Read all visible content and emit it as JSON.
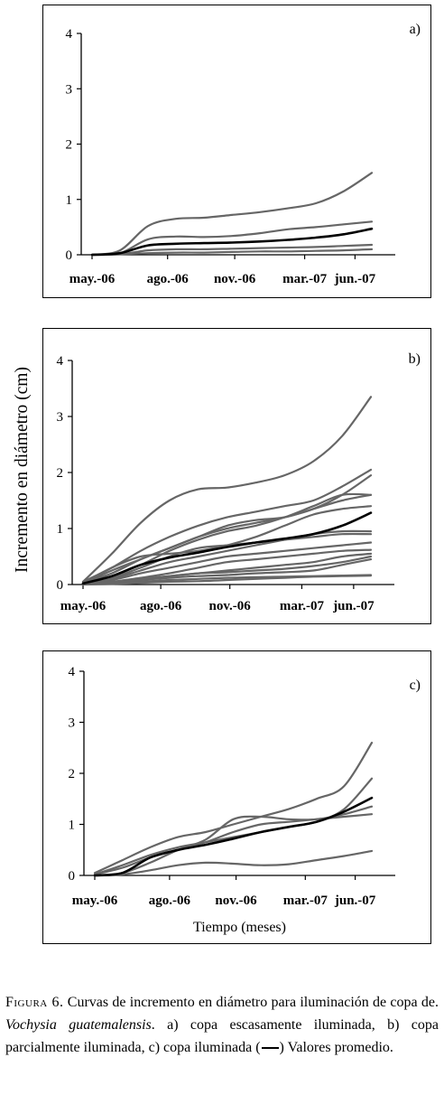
{
  "ylabel": "Incremento en diámetro (cm)",
  "caption": {
    "fig_label": "Figura 6.",
    "text_1": " Curvas de incremento en diámetro para iluminación de copa de. ",
    "species": "Vochysia guatemalensis",
    "text_2": ". a) copa escasamente iluminada, b) copa parcialmente iluminada, c) copa iluminada (",
    "text_3": ") Valores promedio."
  },
  "colors": {
    "tree": "#666666",
    "mean": "#000000"
  },
  "chart_data": [
    {
      "type": "line",
      "panel_label": "a)",
      "xlabel": "",
      "ylabel": "Incremento en diámetro (cm)",
      "yticks": [
        "0",
        "1",
        "2",
        "3",
        "4"
      ],
      "xticks": [
        "may.-06",
        "ago.-06",
        "nov.-06",
        "mar.-07",
        "jun.-07"
      ],
      "ylim": [
        0,
        4
      ],
      "xlim": [
        0,
        1
      ],
      "x": [
        0.0,
        0.1,
        0.2,
        0.3,
        0.4,
        0.5,
        0.6,
        0.7,
        0.8,
        0.9,
        1.0
      ],
      "series": [
        {
          "role": "tree",
          "values": [
            0.0,
            0.08,
            0.52,
            0.65,
            0.67,
            0.72,
            0.77,
            0.84,
            0.93,
            1.15,
            1.48
          ]
        },
        {
          "role": "tree",
          "values": [
            0.0,
            0.03,
            0.28,
            0.33,
            0.32,
            0.34,
            0.39,
            0.46,
            0.5,
            0.55,
            0.6
          ]
        },
        {
          "role": "tree",
          "values": [
            0.0,
            0.01,
            0.08,
            0.1,
            0.1,
            0.11,
            0.12,
            0.13,
            0.14,
            0.16,
            0.18
          ]
        },
        {
          "role": "tree",
          "values": [
            0.0,
            0.01,
            0.03,
            0.04,
            0.04,
            0.05,
            0.06,
            0.06,
            0.07,
            0.08,
            0.1
          ]
        },
        {
          "role": "mean",
          "values": [
            0.0,
            0.03,
            0.17,
            0.2,
            0.21,
            0.22,
            0.24,
            0.27,
            0.31,
            0.37,
            0.47
          ]
        }
      ]
    },
    {
      "type": "line",
      "panel_label": "b)",
      "xlabel": "",
      "ylabel": "Incremento en diámetro (cm)",
      "yticks": [
        "0",
        "1",
        "2",
        "3",
        "4"
      ],
      "xticks": [
        "may.-06",
        "ago.-06",
        "nov.-06",
        "mar.-07",
        "jun.-07"
      ],
      "ylim": [
        0,
        4
      ],
      "xlim": [
        0,
        1
      ],
      "x": [
        0.0,
        0.1,
        0.2,
        0.3,
        0.4,
        0.5,
        0.6,
        0.7,
        0.8,
        0.9,
        1.0
      ],
      "series": [
        {
          "role": "tree",
          "values": [
            0.05,
            0.55,
            1.1,
            1.5,
            1.7,
            1.73,
            1.82,
            1.95,
            2.2,
            2.65,
            3.35
          ]
        },
        {
          "role": "tree",
          "values": [
            0.05,
            0.3,
            0.6,
            0.85,
            1.05,
            1.2,
            1.3,
            1.4,
            1.5,
            1.75,
            2.05
          ]
        },
        {
          "role": "tree",
          "values": [
            0.03,
            0.2,
            0.45,
            0.65,
            0.85,
            1.0,
            1.1,
            1.2,
            1.35,
            1.6,
            1.95
          ]
        },
        {
          "role": "tree",
          "values": [
            0.02,
            0.25,
            0.45,
            0.65,
            0.85,
            1.05,
            1.15,
            1.2,
            1.35,
            1.5,
            1.6
          ]
        },
        {
          "role": "tree",
          "values": [
            0.02,
            0.15,
            0.35,
            0.6,
            0.8,
            0.95,
            1.05,
            1.2,
            1.4,
            1.6,
            1.6
          ]
        },
        {
          "role": "tree",
          "values": [
            0.02,
            0.3,
            0.5,
            0.55,
            0.6,
            0.7,
            0.85,
            1.05,
            1.25,
            1.35,
            1.4
          ]
        },
        {
          "role": "tree",
          "values": [
            0.02,
            0.1,
            0.25,
            0.4,
            0.5,
            0.6,
            0.7,
            0.8,
            0.9,
            0.95,
            0.95
          ]
        },
        {
          "role": "tree",
          "values": [
            0.02,
            0.12,
            0.3,
            0.5,
            0.65,
            0.7,
            0.75,
            0.8,
            0.85,
            0.9,
            0.9
          ]
        },
        {
          "role": "tree",
          "values": [
            0.02,
            0.08,
            0.2,
            0.3,
            0.4,
            0.5,
            0.55,
            0.6,
            0.65,
            0.7,
            0.75
          ]
        },
        {
          "role": "tree",
          "values": [
            0.01,
            0.05,
            0.12,
            0.2,
            0.3,
            0.4,
            0.45,
            0.5,
            0.55,
            0.6,
            0.62
          ]
        },
        {
          "role": "tree",
          "values": [
            0.01,
            0.04,
            0.1,
            0.15,
            0.2,
            0.25,
            0.3,
            0.35,
            0.4,
            0.5,
            0.55
          ]
        },
        {
          "role": "tree",
          "values": [
            0.01,
            0.05,
            0.1,
            0.15,
            0.2,
            0.22,
            0.25,
            0.28,
            0.33,
            0.4,
            0.5
          ]
        },
        {
          "role": "tree",
          "values": [
            0.01,
            0.03,
            0.08,
            0.12,
            0.15,
            0.17,
            0.2,
            0.22,
            0.25,
            0.35,
            0.45
          ]
        },
        {
          "role": "tree",
          "values": [
            0.01,
            0.02,
            0.05,
            0.08,
            0.1,
            0.12,
            0.13,
            0.14,
            0.15,
            0.16,
            0.17
          ]
        },
        {
          "role": "tree",
          "values": [
            0.0,
            0.01,
            0.03,
            0.05,
            0.06,
            0.08,
            0.1,
            0.12,
            0.14,
            0.15,
            0.16
          ]
        },
        {
          "role": "mean",
          "values": [
            0.02,
            0.15,
            0.35,
            0.48,
            0.57,
            0.67,
            0.75,
            0.82,
            0.9,
            1.05,
            1.28
          ]
        }
      ]
    },
    {
      "type": "line",
      "panel_label": "c)",
      "xlabel": "Tiempo (meses)",
      "ylabel": "Incremento en diámetro (cm)",
      "yticks": [
        "0",
        "1",
        "2",
        "3",
        "4"
      ],
      "xticks": [
        "may.-06",
        "ago.-06",
        "nov.-06",
        "mar.-07",
        "jun.-07"
      ],
      "ylim": [
        0,
        4
      ],
      "xlim": [
        0,
        1
      ],
      "x": [
        0.0,
        0.1,
        0.2,
        0.3,
        0.4,
        0.5,
        0.6,
        0.7,
        0.8,
        0.9,
        1.0
      ],
      "series": [
        {
          "role": "tree",
          "values": [
            0.05,
            0.3,
            0.55,
            0.75,
            0.85,
            1.0,
            1.15,
            1.3,
            1.5,
            1.75,
            2.6
          ]
        },
        {
          "role": "tree",
          "values": [
            0.02,
            0.2,
            0.4,
            0.55,
            0.65,
            0.75,
            0.85,
            0.95,
            1.05,
            1.3,
            1.9
          ]
        },
        {
          "role": "tree",
          "values": [
            0.0,
            0.05,
            0.25,
            0.5,
            0.7,
            1.1,
            1.15,
            1.1,
            1.1,
            1.2,
            1.35
          ]
        },
        {
          "role": "tree",
          "values": [
            0.02,
            0.15,
            0.35,
            0.5,
            0.65,
            0.85,
            1.0,
            1.05,
            1.1,
            1.15,
            1.2
          ]
        },
        {
          "role": "tree",
          "values": [
            0.0,
            0.02,
            0.1,
            0.2,
            0.25,
            0.23,
            0.2,
            0.22,
            0.3,
            0.38,
            0.48
          ]
        },
        {
          "role": "mean",
          "values": [
            0.0,
            0.05,
            0.35,
            0.5,
            0.6,
            0.72,
            0.85,
            0.95,
            1.05,
            1.25,
            1.52
          ]
        }
      ]
    }
  ]
}
